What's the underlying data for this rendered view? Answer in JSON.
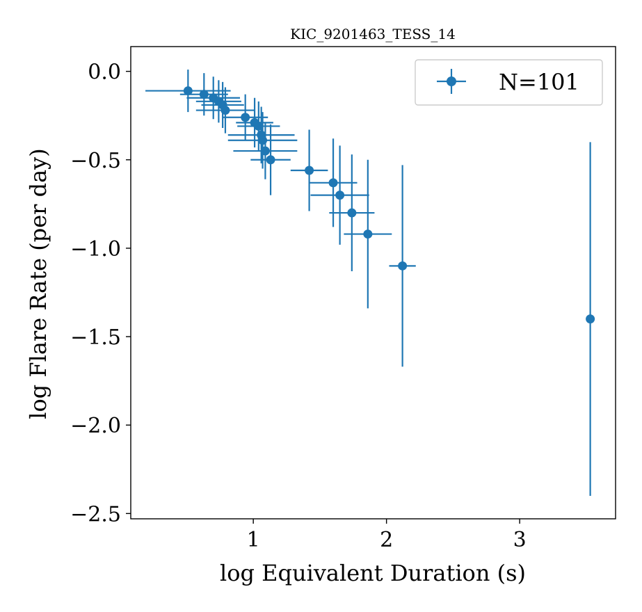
{
  "chart_data": {
    "type": "scatter",
    "title": "KIC_9201463_TESS_14",
    "xlabel": "log Equivalent Duration (s)",
    "ylabel": "log Flare Rate (per day)",
    "xlim": [
      0.08,
      3.72
    ],
    "ylim": [
      -2.53,
      0.14
    ],
    "xticks": [
      1,
      2,
      3
    ],
    "xtick_labels": [
      "1",
      "2",
      "3"
    ],
    "yticks": [
      0.0,
      -0.5,
      -1.0,
      -1.5,
      -2.0,
      -2.5
    ],
    "ytick_labels": [
      "0.0",
      "−0.5",
      "−1.0",
      "−1.5",
      "−2.0",
      "−2.5"
    ],
    "legend": {
      "label": "N=101",
      "placement": "top-right"
    },
    "color": "#1f77b4",
    "grid": false,
    "points": [
      {
        "x": 0.51,
        "y": -0.11,
        "xerr": 0.32,
        "yerr": 0.12
      },
      {
        "x": 0.63,
        "y": -0.13,
        "xerr": 0.18,
        "yerr": 0.12
      },
      {
        "x": 0.7,
        "y": -0.15,
        "xerr": 0.2,
        "yerr": 0.12
      },
      {
        "x": 0.74,
        "y": -0.17,
        "xerr": 0.17,
        "yerr": 0.12
      },
      {
        "x": 0.77,
        "y": -0.19,
        "xerr": 0.16,
        "yerr": 0.13
      },
      {
        "x": 0.79,
        "y": -0.22,
        "xerr": 0.22,
        "yerr": 0.13
      },
      {
        "x": 0.94,
        "y": -0.26,
        "xerr": 0.17,
        "yerr": 0.13
      },
      {
        "x": 1.01,
        "y": -0.29,
        "xerr": 0.14,
        "yerr": 0.14
      },
      {
        "x": 1.04,
        "y": -0.31,
        "xerr": 0.16,
        "yerr": 0.14
      },
      {
        "x": 1.06,
        "y": -0.36,
        "xerr": 0.25,
        "yerr": 0.16
      },
      {
        "x": 1.07,
        "y": -0.39,
        "xerr": 0.26,
        "yerr": 0.16
      },
      {
        "x": 1.09,
        "y": -0.45,
        "xerr": 0.24,
        "yerr": 0.16
      },
      {
        "x": 1.13,
        "y": -0.5,
        "xerr": 0.15,
        "yerr": 0.2
      },
      {
        "x": 1.42,
        "y": -0.56,
        "xerr": 0.14,
        "yerr": 0.23
      },
      {
        "x": 1.6,
        "y": -0.63,
        "xerr": 0.18,
        "yerr": 0.25
      },
      {
        "x": 1.65,
        "y": -0.7,
        "xerr": 0.22,
        "yerr": 0.28
      },
      {
        "x": 1.74,
        "y": -0.8,
        "xerr": 0.17,
        "yerr": 0.33
      },
      {
        "x": 1.86,
        "y": -0.92,
        "xerr": 0.18,
        "yerr": 0.42
      },
      {
        "x": 2.12,
        "y": -1.1,
        "xerr": 0.1,
        "yerr": 0.57
      },
      {
        "x": 3.53,
        "y": -1.4,
        "xerr": 0.0,
        "yerr": 1.0
      }
    ]
  }
}
